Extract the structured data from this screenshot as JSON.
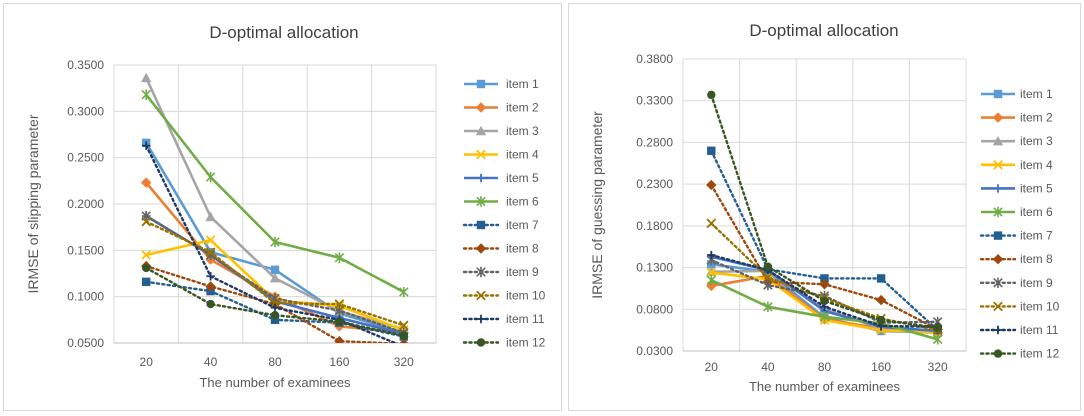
{
  "chart_data": [
    {
      "type": "line",
      "title": "D-optimal allocation",
      "xlabel": "The number of examinees",
      "ylabel": "IRMSE of slipping parameter",
      "categories": [
        "20",
        "40",
        "80",
        "160",
        "320"
      ],
      "ylim": [
        0.05,
        0.35
      ],
      "yticks": [
        "0.0500",
        "0.1000",
        "0.1500",
        "0.2000",
        "0.2500",
        "0.3000",
        "0.3500"
      ],
      "series": [
        {
          "name": "item 1",
          "color": "#5B9BD5",
          "style": "solid",
          "marker": "square",
          "values": [
            0.266,
            0.148,
            0.129,
            0.082,
            0.061
          ]
        },
        {
          "name": "item 2",
          "color": "#ED7D31",
          "style": "solid",
          "marker": "diamond",
          "values": [
            0.223,
            0.14,
            0.1,
            0.068,
            0.061
          ]
        },
        {
          "name": "item 3",
          "color": "#A5A5A5",
          "style": "solid",
          "marker": "triangle",
          "values": [
            0.336,
            0.186,
            0.12,
            0.084,
            0.065
          ]
        },
        {
          "name": "item 4",
          "color": "#FFC000",
          "style": "solid",
          "marker": "x",
          "values": [
            0.145,
            0.161,
            0.096,
            0.09,
            0.064
          ]
        },
        {
          "name": "item 5",
          "color": "#4472C4",
          "style": "solid",
          "marker": "plus",
          "values": [
            0.187,
            0.145,
            0.095,
            0.077,
            0.06
          ]
        },
        {
          "name": "item 6",
          "color": "#70AD47",
          "style": "solid",
          "marker": "star",
          "values": [
            0.318,
            0.229,
            0.159,
            0.142,
            0.105
          ]
        },
        {
          "name": "item 7",
          "color": "#255E91",
          "style": "dotted",
          "marker": "square",
          "values": [
            0.116,
            0.106,
            0.075,
            0.072,
            0.057
          ]
        },
        {
          "name": "item 8",
          "color": "#9E480E",
          "style": "dotted",
          "marker": "diamond",
          "values": [
            0.133,
            0.111,
            0.092,
            0.052,
            0.049
          ]
        },
        {
          "name": "item 9",
          "color": "#636363",
          "style": "dotted",
          "marker": "star",
          "values": [
            0.187,
            0.145,
            0.098,
            0.085,
            0.061
          ]
        },
        {
          "name": "item 10",
          "color": "#997300",
          "style": "dotted",
          "marker": "x",
          "values": [
            0.181,
            0.148,
            0.093,
            0.092,
            0.069
          ]
        },
        {
          "name": "item 11",
          "color": "#1F3864",
          "style": "dotted",
          "marker": "plus",
          "values": [
            0.263,
            0.122,
            0.088,
            0.075,
            0.046
          ]
        },
        {
          "name": "item 12",
          "color": "#375623",
          "style": "dotted",
          "marker": "circle",
          "values": [
            0.131,
            0.092,
            0.08,
            0.073,
            0.058
          ]
        }
      ]
    },
    {
      "type": "line",
      "title": "D-optimal allocation",
      "xlabel": "The number of examinees",
      "ylabel": "IRMSE of guessing parameter",
      "categories": [
        "20",
        "40",
        "80",
        "160",
        "320"
      ],
      "ylim": [
        0.03,
        0.38
      ],
      "yticks": [
        "0.0300",
        "0.0800",
        "0.1300",
        "0.1800",
        "0.2300",
        "0.2800",
        "0.3300",
        "0.3800"
      ],
      "series": [
        {
          "name": "item 1",
          "color": "#5B9BD5",
          "style": "solid",
          "marker": "square",
          "values": [
            0.134,
            0.125,
            0.07,
            0.054,
            0.052
          ]
        },
        {
          "name": "item 2",
          "color": "#ED7D31",
          "style": "solid",
          "marker": "diamond",
          "values": [
            0.108,
            0.12,
            0.068,
            0.057,
            0.052
          ]
        },
        {
          "name": "item 3",
          "color": "#A5A5A5",
          "style": "solid",
          "marker": "triangle",
          "values": [
            0.125,
            0.126,
            0.08,
            0.057,
            0.053
          ]
        },
        {
          "name": "item 4",
          "color": "#FFC000",
          "style": "solid",
          "marker": "x",
          "values": [
            0.124,
            0.116,
            0.067,
            0.055,
            0.052
          ]
        },
        {
          "name": "item 5",
          "color": "#4472C4",
          "style": "solid",
          "marker": "plus",
          "values": [
            0.143,
            0.127,
            0.078,
            0.059,
            0.054
          ]
        },
        {
          "name": "item 6",
          "color": "#70AD47",
          "style": "solid",
          "marker": "star",
          "values": [
            0.115,
            0.083,
            0.071,
            0.063,
            0.044
          ]
        },
        {
          "name": "item 7",
          "color": "#255E91",
          "style": "dotted",
          "marker": "square",
          "values": [
            0.27,
            0.128,
            0.117,
            0.117,
            0.055
          ]
        },
        {
          "name": "item 8",
          "color": "#9E480E",
          "style": "dotted",
          "marker": "diamond",
          "values": [
            0.229,
            0.113,
            0.11,
            0.091,
            0.056
          ]
        },
        {
          "name": "item 9",
          "color": "#636363",
          "style": "dotted",
          "marker": "star",
          "values": [
            0.139,
            0.109,
            0.096,
            0.064,
            0.065
          ]
        },
        {
          "name": "item 10",
          "color": "#997300",
          "style": "dotted",
          "marker": "x",
          "values": [
            0.183,
            0.118,
            0.093,
            0.069,
            0.055
          ]
        },
        {
          "name": "item 11",
          "color": "#1F3864",
          "style": "dotted",
          "marker": "plus",
          "values": [
            0.145,
            0.127,
            0.083,
            0.06,
            0.059
          ]
        },
        {
          "name": "item 12",
          "color": "#375623",
          "style": "dotted",
          "marker": "circle",
          "values": [
            0.337,
            0.131,
            0.09,
            0.067,
            0.058
          ]
        }
      ]
    }
  ]
}
